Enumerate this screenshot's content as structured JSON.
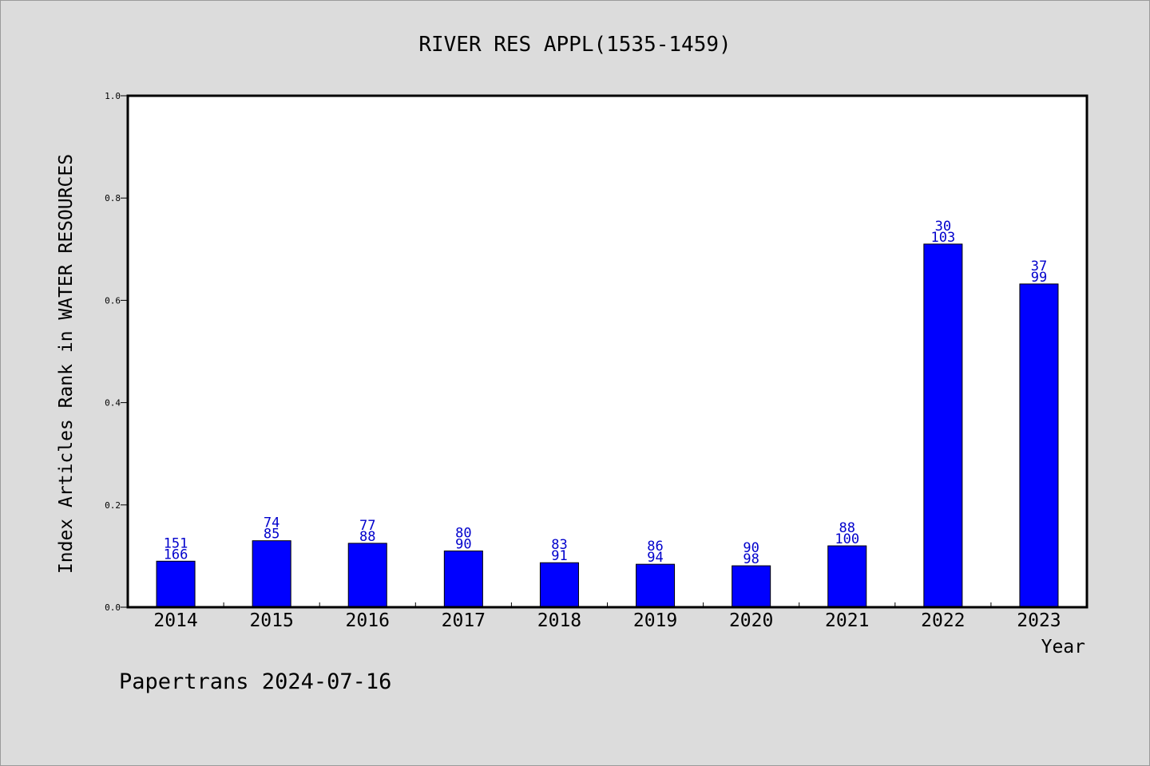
{
  "chart_data": {
    "type": "bar",
    "title": "RIVER RES APPL(1535-1459)",
    "xlabel": "Year",
    "ylabel": "Index Articles Rank in WATER RESOURCES",
    "ylim": [
      0,
      1.0
    ],
    "yticks": [
      0.0,
      0.2,
      0.4,
      0.6,
      0.8,
      1.0
    ],
    "ytick_labels": [
      "0.0",
      "0.2",
      "0.4",
      "0.6",
      "0.8",
      "1.0"
    ],
    "grid": false,
    "categories": [
      "2014",
      "2015",
      "2016",
      "2017",
      "2018",
      "2019",
      "2020",
      "2021",
      "2022",
      "2023"
    ],
    "values": [
      0.09,
      0.13,
      0.125,
      0.11,
      0.087,
      0.084,
      0.081,
      0.12,
      0.71,
      0.632
    ],
    "labels_top": [
      "151",
      "74",
      "77",
      "80",
      "83",
      "86",
      "90",
      "88",
      "30",
      "37"
    ],
    "labels_bottom": [
      "166",
      "85",
      "88",
      "90",
      "91",
      "94",
      "98",
      "100",
      "103",
      "99"
    ],
    "footer": "Papertrans 2024-07-16",
    "colors": {
      "bar": "#0000ff",
      "bar_label": "#0000cc",
      "axis": "#000000",
      "plot_bg": "#ffffff",
      "page_bg": "#dcdcdc"
    }
  }
}
